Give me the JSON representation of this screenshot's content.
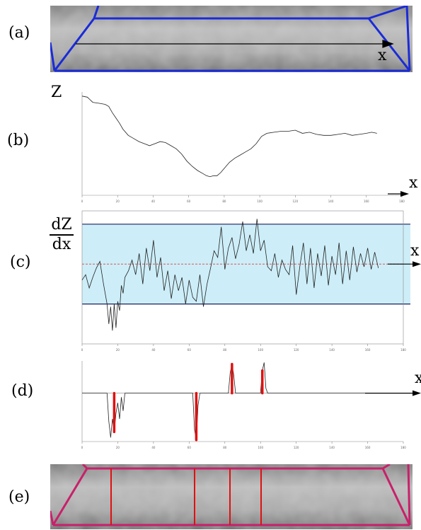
{
  "labels": {
    "a": "(a)",
    "b": "(b)",
    "c": "(c)",
    "d": "(d)",
    "e": "(e)"
  },
  "axis_symbols": {
    "x": "x",
    "z": "Z",
    "dz_num": "dZ",
    "dz_den": "dx"
  },
  "colors": {
    "outline_blue": "#1a2bd8",
    "outline_red": "#d81a2b",
    "band_fill": "#cdeef8",
    "band_line": "#1a2060",
    "zero_line": "#d84040",
    "spike": "#e01010"
  },
  "chart_data": [
    {
      "type": "line",
      "xlim": [
        0,
        180
      ],
      "ylim": [
        0,
        100
      ],
      "xticks": [
        0,
        20,
        40,
        60,
        80,
        100,
        120,
        140,
        160,
        180
      ],
      "x": [
        0,
        3,
        6,
        10,
        13,
        15,
        17,
        19,
        21,
        23,
        26,
        29,
        32,
        35,
        38,
        41,
        44,
        47,
        50,
        53,
        56,
        59,
        62,
        65,
        68,
        70,
        72,
        74,
        76,
        78,
        80,
        83,
        86,
        89,
        92,
        95,
        98,
        101,
        104,
        108,
        112,
        116,
        120,
        124,
        128,
        132,
        136,
        140,
        144,
        148,
        152,
        156,
        160,
        163,
        166
      ],
      "y": [
        96,
        95,
        90,
        89,
        88,
        86,
        80,
        75,
        70,
        64,
        58,
        55,
        52,
        50,
        48,
        50,
        52,
        51,
        48,
        45,
        40,
        33,
        28,
        24,
        21,
        19,
        18,
        19,
        19,
        22,
        26,
        32,
        36,
        39,
        42,
        45,
        50,
        57,
        60,
        61,
        62,
        62,
        63,
        60,
        61,
        59,
        58,
        58,
        59,
        60,
        58,
        59,
        60,
        61,
        60
      ]
    },
    {
      "type": "line",
      "xlim": [
        0,
        180
      ],
      "ylim": [
        -6,
        4
      ],
      "band": [
        -3,
        3
      ],
      "xticks": [
        0,
        20,
        40,
        60,
        80,
        100,
        120,
        140,
        160,
        180
      ],
      "x": [
        0,
        2,
        4,
        6,
        8,
        10,
        12,
        14,
        15,
        16,
        17,
        18,
        19,
        20,
        21,
        22,
        23,
        24,
        26,
        28,
        30,
        32,
        34,
        36,
        38,
        40,
        42,
        44,
        46,
        48,
        50,
        52,
        54,
        56,
        58,
        60,
        62,
        64,
        66,
        68,
        70,
        72,
        74,
        76,
        78,
        80,
        82,
        84,
        86,
        88,
        90,
        92,
        94,
        96,
        98,
        100,
        102,
        104,
        106,
        108,
        110,
        112,
        114,
        116,
        118,
        120,
        122,
        124,
        126,
        128,
        130,
        132,
        134,
        136,
        138,
        140,
        142,
        144,
        146,
        148,
        150,
        152,
        154,
        156,
        158,
        160,
        162,
        164,
        166
      ],
      "y": [
        -1.2,
        -0.8,
        -1.8,
        -1.0,
        -0.3,
        0.2,
        -1.5,
        -3.0,
        -4.5,
        -3.2,
        -5.0,
        -3.0,
        -4.8,
        -2.8,
        -3.5,
        -1.6,
        -2.2,
        -1.0,
        -0.5,
        0.3,
        -0.8,
        0.8,
        -1.5,
        1.2,
        -0.5,
        1.8,
        -1.0,
        0.5,
        -2.0,
        -0.5,
        -2.6,
        -0.8,
        -2.0,
        -1.0,
        -3.0,
        -1.2,
        -2.5,
        -2.8,
        -0.8,
        -3.2,
        -1.5,
        -0.3,
        1.0,
        0.5,
        2.8,
        -0.4,
        1.2,
        2.0,
        0.4,
        1.5,
        3.2,
        1.0,
        2.2,
        0.8,
        3.4,
        1.0,
        1.8,
        -0.2,
        -0.5,
        0.8,
        -1.0,
        0.3,
        -0.4,
        -0.8,
        1.4,
        -2.3,
        -0.2,
        1.6,
        -1.5,
        1.2,
        -1.8,
        0.8,
        -0.9,
        1.4,
        -1.6,
        0.6,
        -0.8,
        1.6,
        -1.5,
        1.0,
        -1.2,
        1.3,
        -0.6,
        0.8,
        -0.2,
        1.2,
        -0.4,
        0.9,
        -0.3
      ]
    },
    {
      "type": "line",
      "xlim": [
        0,
        180
      ],
      "ylim": [
        -6,
        4
      ],
      "xticks": [
        0,
        20,
        40,
        60,
        80,
        100,
        120,
        140,
        160,
        180
      ],
      "x": [
        0,
        14,
        15,
        16,
        17,
        18,
        19,
        20,
        21,
        22,
        23,
        24,
        60,
        62,
        63,
        64,
        65,
        66,
        80,
        82,
        83,
        84,
        85,
        86,
        100,
        101,
        102,
        103,
        104,
        120,
        160,
        170
      ],
      "y": [
        0,
        0,
        -3.5,
        -5.5,
        -3.2,
        -4.8,
        -2.5,
        -1.2,
        -3.2,
        -0.5,
        -2.2,
        0,
        0,
        0,
        -4.5,
        -5.8,
        -1.5,
        0,
        0,
        0,
        2.5,
        3.6,
        2.2,
        0,
        0,
        2.8,
        3.8,
        0.6,
        0,
        0,
        0,
        0
      ],
      "spikes_x": [
        18,
        64,
        84,
        101
      ]
    }
  ]
}
